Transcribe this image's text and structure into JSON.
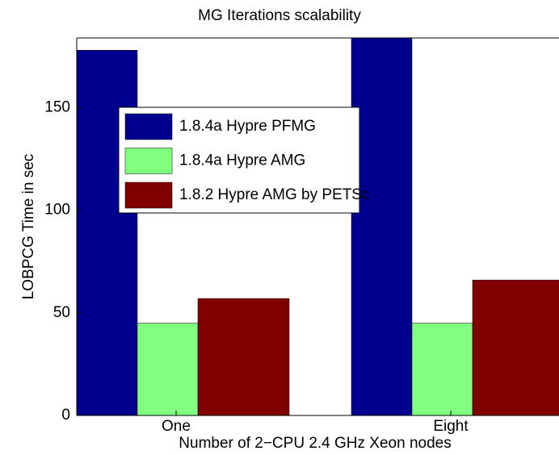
{
  "chart_data": {
    "type": "bar",
    "title": "MG Iterations scalability",
    "xlabel": "Number of 2−CPU 2.4 GHz Xeon nodes",
    "ylabel": "LOBPCG Time in sec",
    "categories": [
      "One",
      "Eight"
    ],
    "series": [
      {
        "name": "1.8.4a Hypre PFMG",
        "color": "#00008f",
        "values": [
          178,
          188
        ]
      },
      {
        "name": "1.8.4a Hypre AMG",
        "color": "#80ff80",
        "values": [
          45,
          45
        ]
      },
      {
        "name": "1.8.2 Hypre AMG by PETSc",
        "color": "#800000",
        "values": [
          57,
          66
        ]
      }
    ],
    "ylim": [
      0,
      184
    ],
    "yticks": [
      0,
      50,
      100,
      150
    ]
  }
}
